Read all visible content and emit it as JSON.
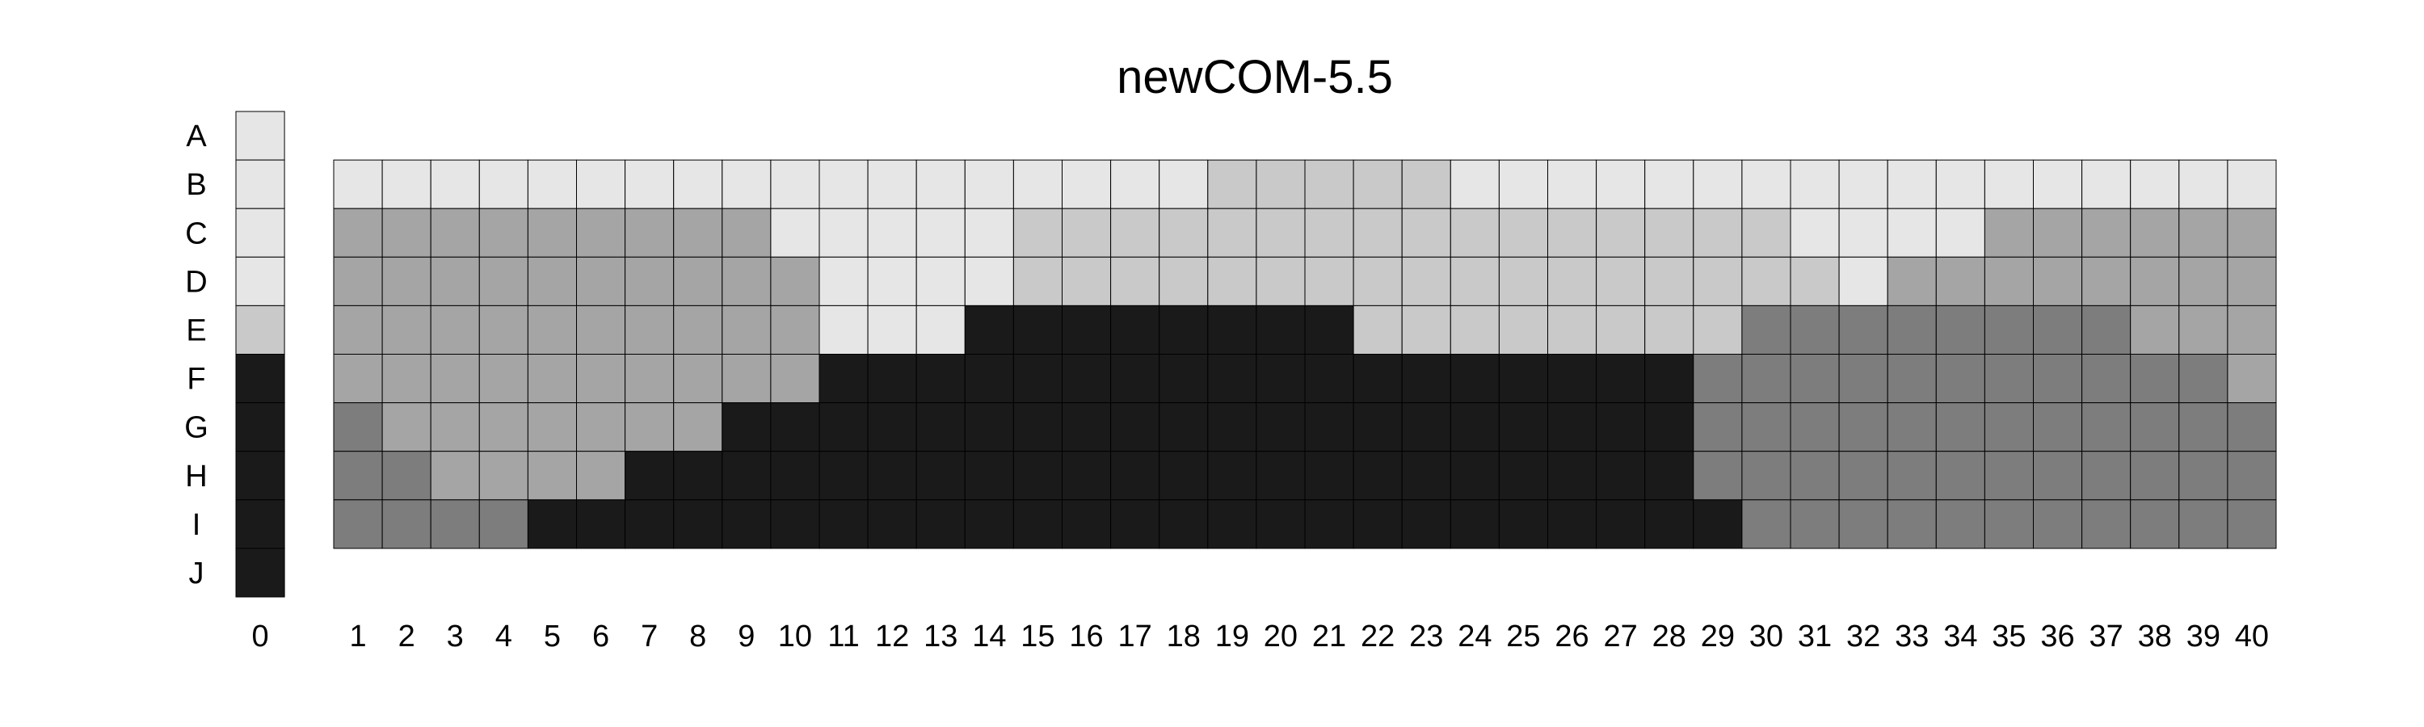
{
  "chart_data": {
    "type": "heatmap",
    "title": "newCOM-5.5",
    "rows": [
      "A",
      "B",
      "C",
      "D",
      "E",
      "F",
      "G",
      "H",
      "I",
      "J"
    ],
    "columns": [
      "0",
      "1",
      "2",
      "3",
      "4",
      "5",
      "6",
      "7",
      "8",
      "9",
      "10",
      "11",
      "12",
      "13",
      "14",
      "15",
      "16",
      "17",
      "18",
      "19",
      "20",
      "21",
      "22",
      "23",
      "24",
      "25",
      "26",
      "27",
      "28",
      "29",
      "30",
      "31",
      "32",
      "33",
      "34",
      "35",
      "36",
      "37",
      "38",
      "39",
      "40"
    ],
    "value_meaning": "grey level index: 0 = lightest (#e6e6e6), 1 = #c9c9c9, 2 = #a5a5a5, 3 = #7d7d7d, 4 = darkest (#1a1a1a)",
    "palette": [
      "#e6e6e6",
      "#c9c9c9",
      "#a5a5a5",
      "#7d7d7d",
      "#1a1a1a"
    ],
    "column0_values": [
      0,
      0,
      0,
      0,
      1,
      4,
      4,
      4,
      4,
      4
    ],
    "grid_rows": [
      "B",
      "C",
      "D",
      "E",
      "F",
      "G",
      "H",
      "I"
    ],
    "grid_values": [
      [
        0,
        0,
        0,
        0,
        0,
        0,
        0,
        0,
        0,
        0,
        0,
        0,
        0,
        0,
        0,
        0,
        0,
        0,
        1,
        1,
        1,
        1,
        1,
        0,
        0,
        0,
        0,
        0,
        0,
        0,
        0,
        0,
        0,
        0,
        0,
        0,
        0,
        0,
        0,
        0
      ],
      [
        2,
        2,
        2,
        2,
        2,
        2,
        2,
        2,
        2,
        0,
        0,
        0,
        0,
        0,
        1,
        1,
        1,
        1,
        1,
        1,
        1,
        1,
        1,
        1,
        1,
        1,
        1,
        1,
        1,
        1,
        0,
        0,
        0,
        0,
        2,
        2,
        2,
        2,
        2,
        2
      ],
      [
        2,
        2,
        2,
        2,
        2,
        2,
        2,
        2,
        2,
        2,
        0,
        0,
        0,
        0,
        1,
        1,
        1,
        1,
        1,
        1,
        1,
        1,
        1,
        1,
        1,
        1,
        1,
        1,
        1,
        1,
        1,
        0,
        2,
        2,
        2,
        2,
        2,
        2,
        2,
        2
      ],
      [
        2,
        2,
        2,
        2,
        2,
        2,
        2,
        2,
        2,
        2,
        0,
        0,
        0,
        4,
        4,
        4,
        4,
        4,
        4,
        4,
        4,
        1,
        1,
        1,
        1,
        1,
        1,
        1,
        1,
        3,
        3,
        3,
        3,
        3,
        3,
        3,
        3,
        2,
        2,
        2
      ],
      [
        2,
        2,
        2,
        2,
        2,
        2,
        2,
        2,
        2,
        2,
        4,
        4,
        4,
        4,
        4,
        4,
        4,
        4,
        4,
        4,
        4,
        4,
        4,
        4,
        4,
        4,
        4,
        4,
        3,
        3,
        3,
        3,
        3,
        3,
        3,
        3,
        3,
        3,
        3,
        2
      ],
      [
        3,
        2,
        2,
        2,
        2,
        2,
        2,
        2,
        4,
        4,
        4,
        4,
        4,
        4,
        4,
        4,
        4,
        4,
        4,
        4,
        4,
        4,
        4,
        4,
        4,
        4,
        4,
        4,
        3,
        3,
        3,
        3,
        3,
        3,
        3,
        3,
        3,
        3,
        3,
        3
      ],
      [
        3,
        3,
        2,
        2,
        2,
        2,
        4,
        4,
        4,
        4,
        4,
        4,
        4,
        4,
        4,
        4,
        4,
        4,
        4,
        4,
        4,
        4,
        4,
        4,
        4,
        4,
        4,
        4,
        3,
        3,
        3,
        3,
        3,
        3,
        3,
        3,
        3,
        3,
        3,
        3
      ],
      [
        3,
        3,
        3,
        3,
        4,
        4,
        4,
        4,
        4,
        4,
        4,
        4,
        4,
        4,
        4,
        4,
        4,
        4,
        4,
        4,
        4,
        4,
        4,
        4,
        4,
        4,
        4,
        4,
        4,
        3,
        3,
        3,
        3,
        3,
        3,
        3,
        3,
        3,
        3,
        3
      ]
    ]
  }
}
